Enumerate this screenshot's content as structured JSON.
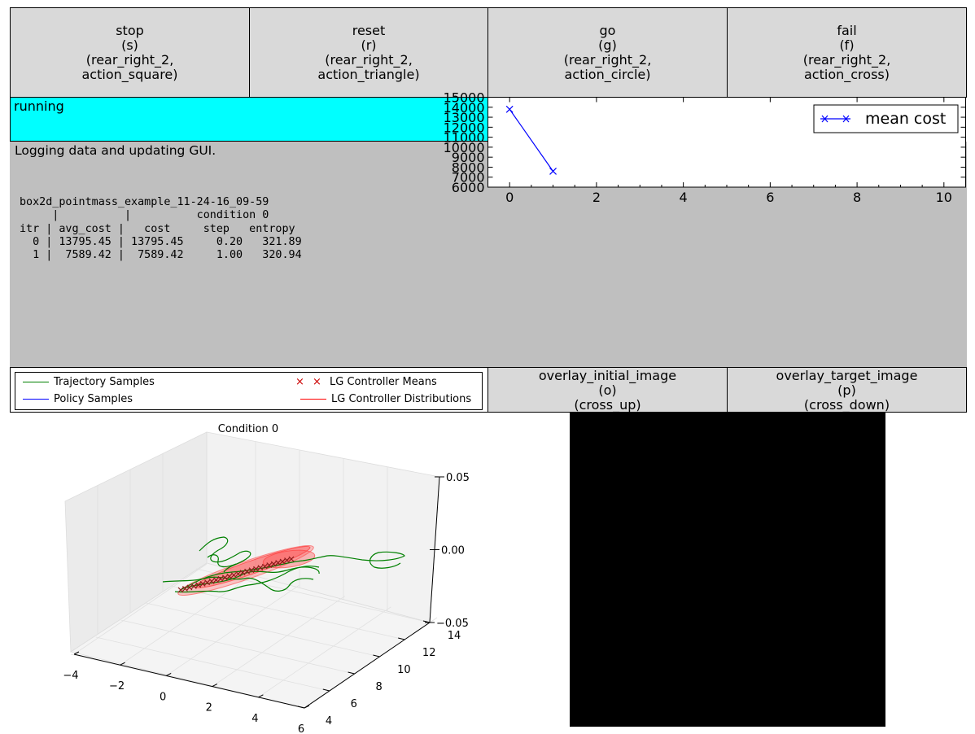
{
  "buttons": {
    "stop": "stop\n(s)\n(rear_right_2,\naction_square)",
    "reset": "reset\n(r)\n(rear_right_2,\naction_triangle)",
    "go": "go\n(g)\n(rear_right_2,\naction_circle)",
    "fail": "fail\n(f)\n(rear_right_2,\naction_cross)",
    "overlay_initial": "overlay_initial_image\n(o)\n(cross_up)",
    "overlay_target": "overlay_target_image\n(p)\n(cross_down)"
  },
  "status": {
    "text": "running",
    "color": "#00ffff"
  },
  "log": {
    "message": "Logging data and updating GUI.",
    "table": "box2d_pointmass_example_11-24-16_09-59\n     |          |          condition 0\nitr | avg_cost |   cost     step   entropy\n  0 | 13795.45 | 13795.45     0.20   321.89\n  1 |  7589.42 |  7589.42     1.00   320.94"
  },
  "legend": {
    "trajectory": "Trajectory Samples",
    "policy": "Policy Samples",
    "means": "LG Controller Means",
    "distributions": "LG Controller Distributions"
  },
  "plot3d_title": "Condition 0",
  "chart_data": [
    {
      "type": "line",
      "series": [
        {
          "name": "mean cost",
          "x": [
            0,
            1
          ],
          "y": [
            13795.45,
            7589.42
          ],
          "color": "#0000ff",
          "marker": "x"
        }
      ],
      "xlim": [
        -0.5,
        10.5
      ],
      "ylim": [
        6000,
        15000
      ],
      "xticks": [
        0,
        2,
        4,
        6,
        8,
        10
      ],
      "yticks": [
        6000,
        7000,
        8000,
        9000,
        10000,
        11000,
        12000,
        13000,
        14000,
        15000
      ],
      "legend_position": "top-right"
    },
    {
      "type": "line",
      "title": "Condition 0",
      "x_ticks": [
        "−4",
        "−2",
        "0",
        "2",
        "4",
        "6"
      ],
      "y_ticks": [
        "4",
        "6",
        "8",
        "10",
        "12",
        "14"
      ],
      "z_ticks": [
        "0.05",
        "0.00",
        "−0.05"
      ]
    }
  ],
  "colors": {
    "button": "#d9d9d9",
    "log_background": "#bfbfbf",
    "trajectory": "#008000",
    "policy": "#0000ff",
    "controller": "#ff0000"
  }
}
